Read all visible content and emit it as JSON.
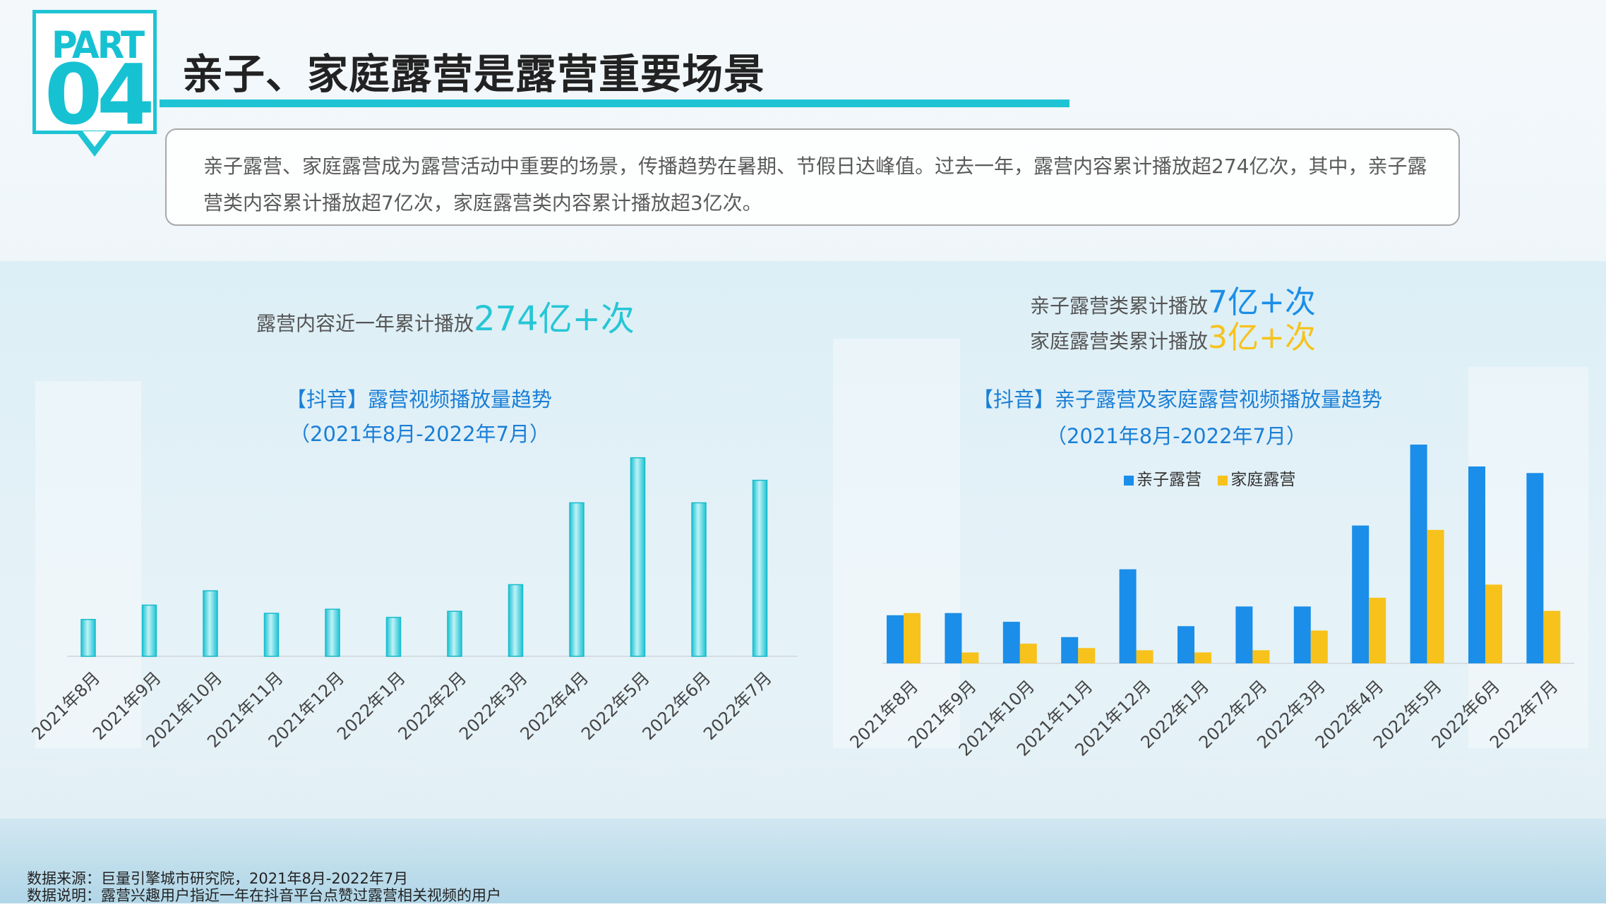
{
  "badge": {
    "part": "PART",
    "number": "04"
  },
  "title": "亲子、家庭露营是露营重要场景",
  "summary": {
    "line1": "亲子露营、家庭露营成为露营活动中重要的场景，传播趋势在暑期、节假日达峰值。过去一年，露营内容累计播放超274亿次，其中，亲子露",
    "line2": "营类内容累计播放超7亿次，家庭露营类内容累计播放超3亿次。"
  },
  "left_stat": {
    "label": "露营内容近一年累计播放",
    "value": "274亿+次"
  },
  "right_stats": [
    {
      "label": "亲子露营类累计播放",
      "value": "7亿+次"
    },
    {
      "label": "家庭露营类累计播放",
      "value": "3亿+次"
    }
  ],
  "colors": {
    "accent": "#1ec4d4",
    "blue": "#1a8ee8",
    "yellow": "#f7c21b",
    "cyan_bar": "#2fd0dd"
  },
  "chart_data": [
    {
      "type": "bar",
      "title": "【抖音】露营视频播放量趋势",
      "subtitle": "（2021年8月-2022年7月）",
      "categories": [
        "2021年8月",
        "2021年9月",
        "2021年10月",
        "2021年11月",
        "2021年12月",
        "2022年1月",
        "2022年2月",
        "2022年3月",
        "2022年4月",
        "2022年5月",
        "2022年6月",
        "2022年7月"
      ],
      "values": [
        18,
        25,
        32,
        21,
        23,
        19,
        22,
        35,
        75,
        97,
        75,
        86
      ],
      "ylim": [
        0,
        100
      ],
      "grid": false,
      "legend": "none"
    },
    {
      "type": "bar",
      "title": "【抖音】亲子露营及家庭露营视频播放量趋势",
      "subtitle": "（2021年8月-2022年7月）",
      "categories": [
        "2021年8月",
        "2021年9月",
        "2021年10月",
        "2021年11月",
        "2021年12月",
        "2022年1月",
        "2022年2月",
        "2022年3月",
        "2022年4月",
        "2022年5月",
        "2022年6月",
        "2022年7月"
      ],
      "series": [
        {
          "name": "亲子露营",
          "values": [
            22,
            23,
            19,
            12,
            43,
            17,
            26,
            26,
            63,
            100,
            90,
            87
          ]
        },
        {
          "name": "家庭露营",
          "values": [
            23,
            5,
            9,
            7,
            6,
            5,
            6,
            15,
            30,
            61,
            36,
            24
          ]
        }
      ],
      "ylim": [
        0,
        100
      ],
      "grid": false,
      "legend": "top-center"
    }
  ],
  "footnotes": [
    "数据来源：巨量引擎城市研究院，2021年8月-2022年7月",
    "数据说明：露营兴趣用户指近一年在抖音平台点赞过露营相关视频的用户"
  ]
}
